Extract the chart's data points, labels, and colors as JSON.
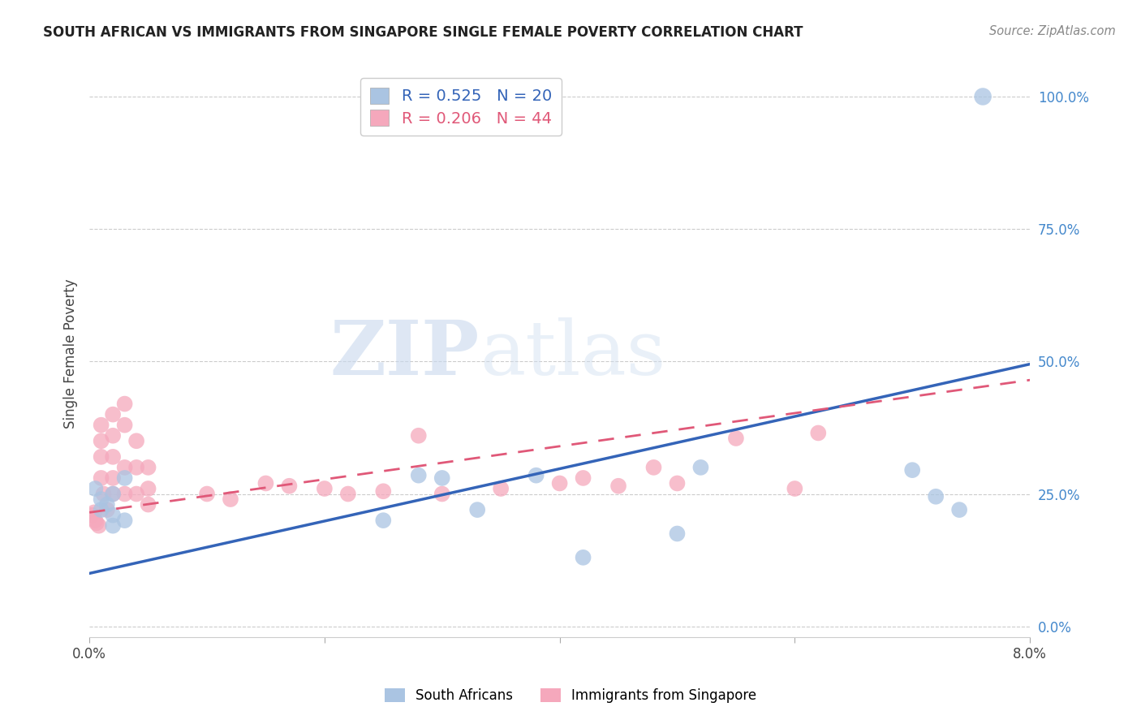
{
  "title": "SOUTH AFRICAN VS IMMIGRANTS FROM SINGAPORE SINGLE FEMALE POVERTY CORRELATION CHART",
  "source": "Source: ZipAtlas.com",
  "ylabel": "Single Female Poverty",
  "xlim": [
    0.0,
    0.08
  ],
  "ylim": [
    -0.02,
    1.05
  ],
  "yticks": [
    0.0,
    0.25,
    0.5,
    0.75,
    1.0
  ],
  "xtick_positions": [
    0.0,
    0.02,
    0.04,
    0.06,
    0.08
  ],
  "xtick_labels": [
    "0.0%",
    "",
    "",
    "",
    "8.0%"
  ],
  "blue_R": 0.525,
  "blue_N": 20,
  "pink_R": 0.206,
  "pink_N": 44,
  "blue_color": "#aac4e2",
  "pink_color": "#f5a8bc",
  "blue_line_color": "#3464b8",
  "pink_line_color": "#e05878",
  "watermark_zip": "ZIP",
  "watermark_atlas": "atlas",
  "legend_label_blue": "South Africans",
  "legend_label_pink": "Immigrants from Singapore",
  "blue_x": [
    0.0005,
    0.001,
    0.001,
    0.0015,
    0.002,
    0.002,
    0.002,
    0.003,
    0.003,
    0.025,
    0.028,
    0.03,
    0.033,
    0.038,
    0.042,
    0.05,
    0.052,
    0.07,
    0.072,
    0.074
  ],
  "blue_y": [
    0.26,
    0.24,
    0.22,
    0.23,
    0.21,
    0.19,
    0.25,
    0.2,
    0.28,
    0.2,
    0.285,
    0.28,
    0.22,
    0.285,
    0.13,
    0.175,
    0.3,
    0.295,
    0.245,
    0.22
  ],
  "blue_outlier_x": [
    0.076
  ],
  "blue_outlier_y": [
    1.0
  ],
  "pink_x": [
    0.0002,
    0.0004,
    0.0005,
    0.0006,
    0.0008,
    0.001,
    0.001,
    0.001,
    0.001,
    0.0012,
    0.0015,
    0.002,
    0.002,
    0.002,
    0.002,
    0.002,
    0.003,
    0.003,
    0.003,
    0.003,
    0.004,
    0.004,
    0.004,
    0.005,
    0.005,
    0.005,
    0.01,
    0.012,
    0.015,
    0.017,
    0.02,
    0.022,
    0.025,
    0.028,
    0.03,
    0.035,
    0.04,
    0.042,
    0.045,
    0.048,
    0.05,
    0.055,
    0.06,
    0.062
  ],
  "pink_y": [
    0.21,
    0.215,
    0.2,
    0.195,
    0.19,
    0.38,
    0.35,
    0.32,
    0.28,
    0.25,
    0.22,
    0.4,
    0.36,
    0.32,
    0.28,
    0.25,
    0.42,
    0.38,
    0.3,
    0.25,
    0.35,
    0.3,
    0.25,
    0.3,
    0.26,
    0.23,
    0.25,
    0.24,
    0.27,
    0.265,
    0.26,
    0.25,
    0.255,
    0.36,
    0.25,
    0.26,
    0.27,
    0.28,
    0.265,
    0.3,
    0.27,
    0.355,
    0.26,
    0.365
  ],
  "blue_line_x0": 0.0,
  "blue_line_y0": 0.1,
  "blue_line_x1": 0.08,
  "blue_line_y1": 0.495,
  "pink_line_x0": 0.0,
  "pink_line_y0": 0.215,
  "pink_line_x1": 0.08,
  "pink_line_y1": 0.465
}
